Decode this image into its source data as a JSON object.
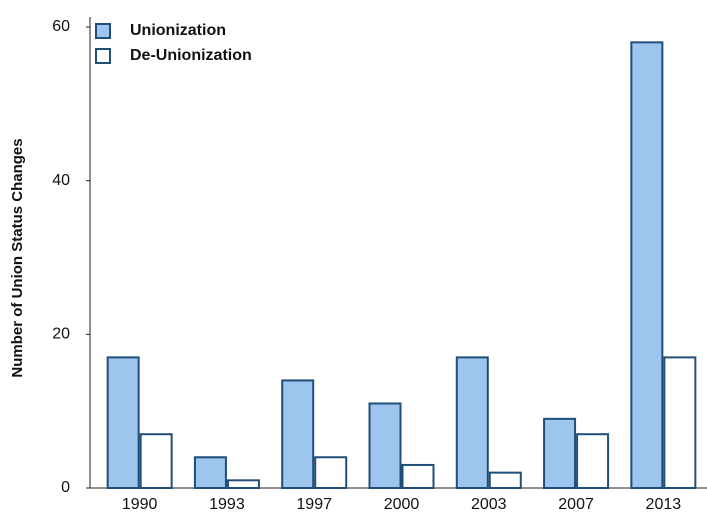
{
  "chart_data": {
    "type": "bar",
    "y_label": "Number of Union Status Changes",
    "categories": [
      "1990",
      "1993",
      "1997",
      "2000",
      "2003",
      "2007",
      "2013"
    ],
    "series": [
      {
        "name": "Unionization",
        "color": "#9ec5ee",
        "values": [
          17,
          4,
          14,
          11,
          17,
          9,
          58
        ]
      },
      {
        "name": "De-Unionization",
        "color": "#ffffff",
        "values": [
          7,
          1,
          4,
          3,
          2,
          7,
          17
        ]
      }
    ],
    "ylim": [
      0,
      60
    ],
    "yticks": [
      0,
      20,
      40,
      60
    ],
    "grid": false,
    "legend": "upper-left"
  }
}
